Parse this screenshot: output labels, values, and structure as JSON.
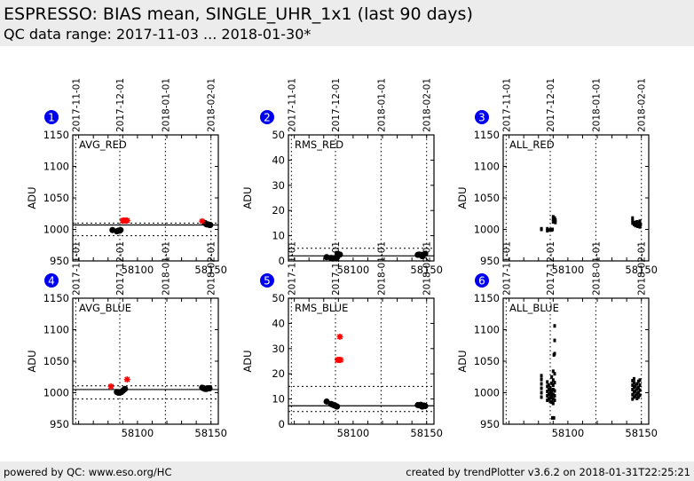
{
  "header": {
    "title": "ESPRESSO: BIAS mean, SINGLE_UHR_1x1 (last 90 days)",
    "subtitle": "QC data range: 2017-11-03 ... 2018-01-30*"
  },
  "footer": {
    "left": "powered by QC: www.eso.org/HC",
    "right": "created by trendPlotter v3.6.2 on 2018-01-31T22:25:21"
  },
  "colors": {
    "badge": "#0000ee",
    "outlier": "#ff0000",
    "point": "#000000"
  },
  "chart_data": [
    {
      "type": "scatter",
      "panel": "1",
      "title": "AVG_RED",
      "ylabel": "ADU",
      "xlim": [
        58056,
        58155
      ],
      "ylim": [
        950,
        1150
      ],
      "yticks": [
        950,
        1000,
        1050,
        1100,
        1150
      ],
      "xticks": [
        58100,
        58150
      ],
      "date_ticks": [
        {
          "mjd": 58058,
          "label": "2017-11-01"
        },
        {
          "mjd": 58088,
          "label": "2017-12-01"
        },
        {
          "mjd": 58119,
          "label": "2018-01-01"
        },
        {
          "mjd": 58150,
          "label": "2018-02-01"
        }
      ],
      "ref_line": 1007,
      "limit_lines": [
        990,
        1010
      ],
      "points": [
        [
          58083,
          999
        ],
        [
          58086,
          997
        ],
        [
          58087,
          998
        ],
        [
          58088,
          998
        ],
        [
          58088.5,
          999
        ],
        [
          58146,
          1010
        ],
        [
          58147,
          1008
        ],
        [
          58148,
          1008
        ],
        [
          58149,
          1007
        ],
        [
          58149.5,
          1007
        ]
      ],
      "outliers": [
        [
          58090,
          1014
        ],
        [
          58091,
          1014
        ],
        [
          58092,
          1014
        ],
        [
          58093,
          1014
        ],
        [
          58144,
          1013
        ]
      ]
    },
    {
      "type": "scatter",
      "panel": "2",
      "title": "RMS_RED",
      "ylabel": "ADU",
      "xlim": [
        58056,
        58155
      ],
      "ylim": [
        0,
        50
      ],
      "yticks": [
        0,
        10,
        20,
        30,
        40,
        50
      ],
      "xticks": [
        58100,
        58150
      ],
      "date_ticks": [
        {
          "mjd": 58058,
          "label": "2017-11-01"
        },
        {
          "mjd": 58088,
          "label": "2017-12-01"
        },
        {
          "mjd": 58119,
          "label": "2018-01-01"
        },
        {
          "mjd": 58150,
          "label": "2018-02-01"
        }
      ],
      "ref_line": 2,
      "limit_lines": [
        5
      ],
      "points": [
        [
          58082,
          1.5
        ],
        [
          58085,
          1.2
        ],
        [
          58086,
          1.0
        ],
        [
          58087,
          1.1
        ],
        [
          58088,
          1.0
        ],
        [
          58089,
          1.3
        ],
        [
          58089.5,
          2.8
        ],
        [
          58090,
          2.6
        ],
        [
          58091,
          2.5
        ],
        [
          58144,
          2.4
        ],
        [
          58145,
          2.5
        ],
        [
          58146,
          2.4
        ],
        [
          58147,
          1.9
        ],
        [
          58148,
          2.5
        ],
        [
          58149,
          2.8
        ]
      ],
      "outliers": []
    },
    {
      "type": "scatter",
      "panel": "3",
      "title": "ALL_RED",
      "ylabel": "ADU",
      "xlim": [
        58056,
        58155
      ],
      "ylim": [
        950,
        1150
      ],
      "yticks": [
        950,
        1000,
        1050,
        1100,
        1150
      ],
      "xticks": [
        58100,
        58150
      ],
      "date_ticks": [
        {
          "mjd": 58058,
          "label": "2017-11-01"
        },
        {
          "mjd": 58088,
          "label": "2017-12-01"
        },
        {
          "mjd": 58119,
          "label": "2018-01-01"
        },
        {
          "mjd": 58150,
          "label": "2018-02-01"
        }
      ],
      "ref_line": null,
      "limit_lines": [],
      "points": [
        [
          58082,
          1000
        ],
        [
          58082,
          1001
        ],
        [
          58086,
          998
        ],
        [
          58086,
          1001
        ],
        [
          58087,
          999
        ],
        [
          58088.5,
          1000
        ],
        [
          58089,
          999
        ],
        [
          58089.5,
          1000
        ],
        [
          58090,
          1012
        ],
        [
          58090,
          1016
        ],
        [
          58090,
          1020
        ],
        [
          58091,
          1013
        ],
        [
          58091,
          1018
        ],
        [
          58091.5,
          1011
        ],
        [
          58091.5,
          1015
        ],
        [
          58144,
          1010
        ],
        [
          58144,
          1014
        ],
        [
          58144,
          1018
        ],
        [
          58145,
          1008
        ],
        [
          58145.5,
          1011
        ],
        [
          58146,
          1006
        ],
        [
          58146.5,
          1009
        ],
        [
          58147,
          1012
        ],
        [
          58147.5,
          1005
        ],
        [
          58148,
          1008
        ],
        [
          58148.5,
          1011
        ],
        [
          58149,
          1004
        ],
        [
          58149,
          1013
        ],
        [
          58149.5,
          1008
        ]
      ],
      "outliers": []
    },
    {
      "type": "scatter",
      "panel": "4",
      "title": "AVG_BLUE",
      "ylabel": "ADU",
      "xlim": [
        58056,
        58155
      ],
      "ylim": [
        950,
        1150
      ],
      "yticks": [
        950,
        1000,
        1050,
        1100,
        1150
      ],
      "xticks": [
        58100,
        58150
      ],
      "date_ticks": [
        {
          "mjd": 58058,
          "label": "2017-11-01"
        },
        {
          "mjd": 58088,
          "label": "2017-12-01"
        },
        {
          "mjd": 58119,
          "label": "2018-01-01"
        },
        {
          "mjd": 58150,
          "label": "2018-02-01"
        }
      ],
      "ref_line": 1005,
      "limit_lines": [
        990,
        1011
      ],
      "points": [
        [
          58086,
          1001
        ],
        [
          58087,
          1000
        ],
        [
          58088,
          1000
        ],
        [
          58089,
          1001
        ],
        [
          58090,
          1003
        ],
        [
          58091,
          1005
        ],
        [
          58091.5,
          1006
        ],
        [
          58144,
          1008
        ],
        [
          58145,
          1007
        ],
        [
          58146,
          1006
        ],
        [
          58147,
          1006
        ],
        [
          58148,
          1007
        ],
        [
          58149,
          1007
        ]
      ],
      "outliers": [
        [
          58082,
          1010
        ],
        [
          58093,
          1021
        ]
      ]
    },
    {
      "type": "scatter",
      "panel": "5",
      "title": "RMS_BLUE",
      "ylabel": "ADU",
      "xlim": [
        58056,
        58155
      ],
      "ylim": [
        0,
        50
      ],
      "yticks": [
        0,
        10,
        20,
        30,
        40,
        50
      ],
      "xticks": [
        58100,
        58150
      ],
      "date_ticks": [
        {
          "mjd": 58058,
          "label": "2017-11-01"
        },
        {
          "mjd": 58088,
          "label": "2017-12-01"
        },
        {
          "mjd": 58119,
          "label": "2018-01-01"
        },
        {
          "mjd": 58150,
          "label": "2018-02-01"
        }
      ],
      "ref_line": 7.3,
      "limit_lines": [
        5,
        15
      ],
      "points": [
        [
          58082,
          9
        ],
        [
          58085,
          8
        ],
        [
          58086,
          7.8
        ],
        [
          58087,
          7.5
        ],
        [
          58088,
          7.3
        ],
        [
          58089,
          7.0
        ],
        [
          58144,
          7.6
        ],
        [
          58145,
          7.5
        ],
        [
          58146,
          7.7
        ],
        [
          58147,
          7.0
        ],
        [
          58148,
          7.4
        ],
        [
          58149,
          7.2
        ]
      ],
      "outliers": [
        [
          58089.5,
          25.5
        ],
        [
          58090.5,
          25.5
        ],
        [
          58091.5,
          25.5
        ],
        [
          58091,
          34.7
        ]
      ]
    },
    {
      "type": "scatter",
      "panel": "6",
      "title": "ALL_BLUE",
      "ylabel": "ADU",
      "xlim": [
        58056,
        58155
      ],
      "ylim": [
        950,
        1150
      ],
      "yticks": [
        950,
        1000,
        1050,
        1100,
        1150
      ],
      "xticks": [
        58100,
        58150
      ],
      "date_ticks": [
        {
          "mjd": 58058,
          "label": "2017-11-01"
        },
        {
          "mjd": 58088,
          "label": "2017-12-01"
        },
        {
          "mjd": 58119,
          "label": "2018-01-01"
        },
        {
          "mjd": 58150,
          "label": "2018-02-01"
        }
      ],
      "ref_line": null,
      "limit_lines": [],
      "points": [
        [
          58082,
          993
        ],
        [
          58082,
          1000
        ],
        [
          58082,
          1007
        ],
        [
          58082,
          1014
        ],
        [
          58082,
          1021
        ],
        [
          58082,
          1027
        ],
        [
          58086,
          988
        ],
        [
          58086,
          995
        ],
        [
          58086,
          1002
        ],
        [
          58086,
          1010
        ],
        [
          58086,
          1017
        ],
        [
          58087,
          990
        ],
        [
          58087,
          998
        ],
        [
          58087,
          1005
        ],
        [
          58087,
          1012
        ],
        [
          58088,
          986
        ],
        [
          58088,
          994
        ],
        [
          58088,
          1001
        ],
        [
          58088,
          1008
        ],
        [
          58088.5,
          996
        ],
        [
          58088.5,
          1004
        ],
        [
          58089,
          985
        ],
        [
          58089,
          992
        ],
        [
          58089,
          1000
        ],
        [
          58089,
          1015
        ],
        [
          58089,
          1025
        ],
        [
          58089.5,
          960
        ],
        [
          58090,
          983
        ],
        [
          58090,
          990
        ],
        [
          58090,
          997
        ],
        [
          58090,
          1005
        ],
        [
          58090,
          1012
        ],
        [
          58090,
          1020
        ],
        [
          58090,
          1034
        ],
        [
          58090.5,
          960
        ],
        [
          58090.5,
          1060
        ],
        [
          58091,
          988
        ],
        [
          58091,
          995
        ],
        [
          58091,
          1003
        ],
        [
          58091,
          1016
        ],
        [
          58091,
          1030
        ],
        [
          58091,
          1062
        ],
        [
          58091,
          1083
        ],
        [
          58091,
          1106
        ],
        [
          58144,
          990
        ],
        [
          58144,
          997
        ],
        [
          58144,
          1005
        ],
        [
          58144,
          1012
        ],
        [
          58144,
          1019
        ],
        [
          58145,
          993
        ],
        [
          58145,
          1001
        ],
        [
          58145,
          1009
        ],
        [
          58145,
          1016
        ],
        [
          58145,
          1022
        ],
        [
          58146,
          995
        ],
        [
          58146,
          1003
        ],
        [
          58146,
          1011
        ],
        [
          58147,
          991
        ],
        [
          58147,
          998
        ],
        [
          58147,
          1006
        ],
        [
          58147,
          1014
        ],
        [
          58148,
          993
        ],
        [
          58148,
          1000
        ],
        [
          58148,
          1008
        ],
        [
          58148,
          1018
        ],
        [
          58149,
          996
        ],
        [
          58149,
          1004
        ],
        [
          58149,
          1012
        ],
        [
          58149,
          1020
        ]
      ],
      "outliers": []
    }
  ]
}
